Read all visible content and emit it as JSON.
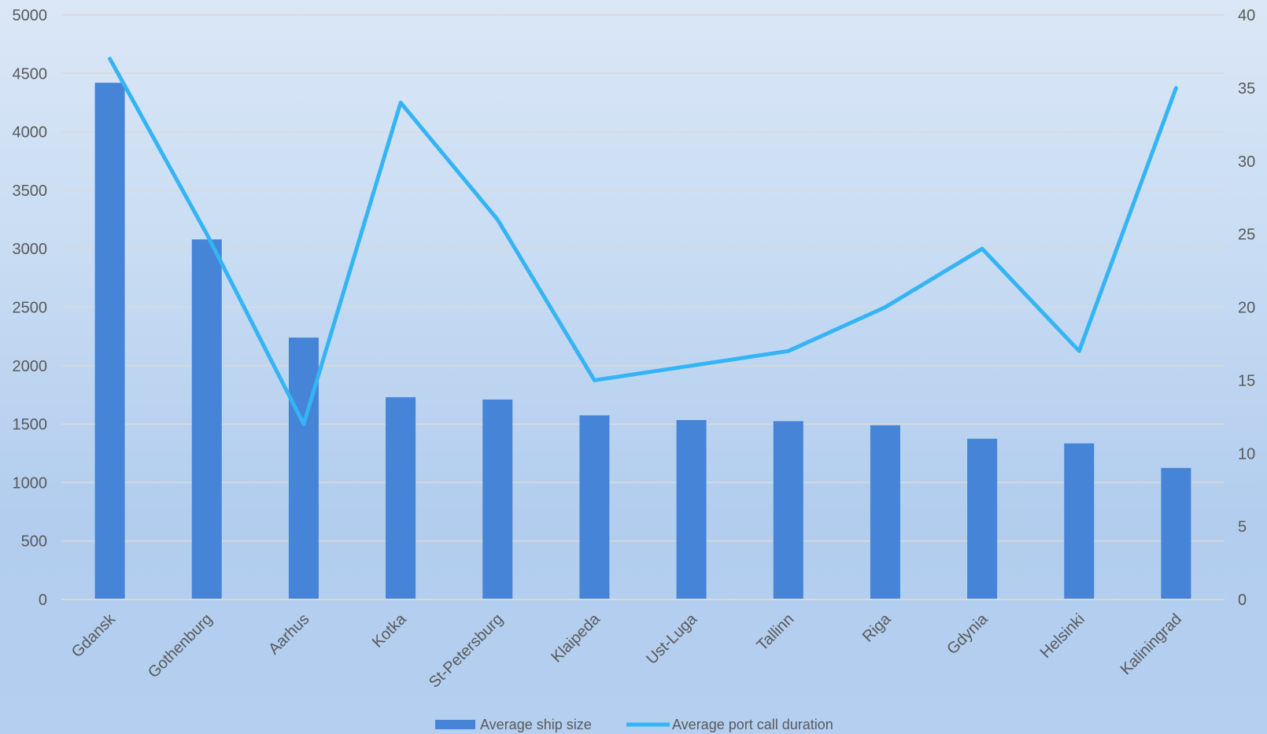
{
  "chart_data": {
    "type": "bar",
    "categories": [
      "Gdansk",
      "Gothenburg",
      "Aarhus",
      "Kotka",
      "St-Petersburg",
      "Klaipeda",
      "Ust-Luga",
      "Tallinn",
      "Riga",
      "Gdynia",
      "Helsinki",
      "Kaliningrad"
    ],
    "series": [
      {
        "name": "Average ship size",
        "type": "bar",
        "axis": "left",
        "color": "#4584d6",
        "values": [
          4420,
          3080,
          2240,
          1730,
          1710,
          1575,
          1535,
          1525,
          1490,
          1375,
          1335,
          1125
        ]
      },
      {
        "name": "Average port call duration",
        "type": "line",
        "axis": "right",
        "color": "#35b4f4",
        "values": [
          37,
          25,
          12,
          34,
          26,
          15,
          16,
          17,
          20,
          24,
          17,
          35
        ]
      }
    ],
    "y_left": {
      "min": 0,
      "max": 5000,
      "step": 500
    },
    "y_right": {
      "min": 0,
      "max": 40,
      "step": 5
    },
    "grid": true,
    "legend_position": "bottom"
  }
}
